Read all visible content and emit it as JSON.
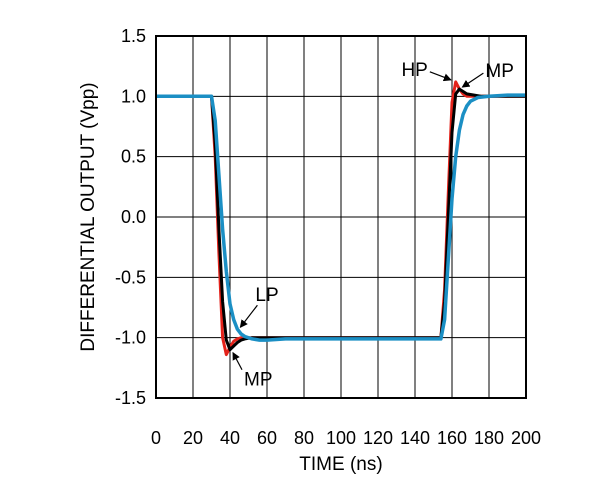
{
  "chart_data": {
    "type": "line",
    "xlabel": "TIME (ns)",
    "ylabel": "DIFFERENTIAL OUTPUT (Vpp)",
    "xlim": [
      0,
      200
    ],
    "ylim": [
      -1.5,
      1.5
    ],
    "x_ticks": [
      0,
      20,
      40,
      60,
      80,
      100,
      120,
      140,
      160,
      180,
      200
    ],
    "y_ticks": [
      1.5,
      1.0,
      0.5,
      0.0,
      -0.5,
      -1.0,
      -1.5
    ],
    "x_tick_labels": [
      "0",
      "20",
      "40",
      "60",
      "80",
      "100",
      "120",
      "140",
      "160",
      "180",
      "200"
    ],
    "y_tick_labels": [
      "1.5",
      "1.0",
      "0.5",
      "0.0",
      "-0.5",
      "-1.0",
      "-1.5"
    ],
    "grid": true,
    "series": [
      {
        "name": "HP",
        "color": "#e3231b",
        "x": [
          0,
          30,
          32,
          34,
          36,
          38,
          40,
          42,
          44,
          46,
          50,
          60,
          80,
          100,
          120,
          140,
          154,
          156,
          158,
          160,
          162,
          164,
          166,
          168,
          172,
          180,
          200
        ],
        "y": [
          1.0,
          1.0,
          0.5,
          -0.3,
          -1.0,
          -1.14,
          -1.08,
          -1.03,
          -1.01,
          -1.0,
          -1.0,
          -1.0,
          -1.0,
          -1.0,
          -1.0,
          -1.0,
          -1.0,
          -0.6,
          0.2,
          0.95,
          1.12,
          1.06,
          1.02,
          1.0,
          1.0,
          1.0,
          1.0
        ]
      },
      {
        "name": "MP",
        "color": "#000000",
        "x": [
          0,
          30,
          32,
          34,
          36,
          38,
          40,
          42,
          44,
          46,
          48,
          52,
          60,
          80,
          100,
          120,
          140,
          154,
          156,
          158,
          160,
          162,
          164,
          166,
          168,
          172,
          176,
          180,
          200
        ],
        "y": [
          1.0,
          1.0,
          0.6,
          -0.1,
          -0.7,
          -1.02,
          -1.1,
          -1.07,
          -1.04,
          -1.02,
          -1.01,
          -1.0,
          -1.0,
          -1.0,
          -1.0,
          -1.0,
          -1.0,
          -1.0,
          -0.7,
          0.0,
          0.7,
          1.02,
          1.06,
          1.04,
          1.02,
          1.01,
          1.0,
          1.0,
          1.0
        ]
      },
      {
        "name": "LP",
        "color": "#1b8fc4",
        "x": [
          0,
          30,
          32,
          34,
          36,
          38,
          40,
          42,
          44,
          46,
          48,
          52,
          56,
          60,
          70,
          80,
          100,
          120,
          140,
          154,
          156,
          158,
          160,
          162,
          164,
          166,
          168,
          170,
          174,
          180,
          190,
          200
        ],
        "y": [
          1.0,
          1.0,
          0.8,
          0.35,
          -0.1,
          -0.45,
          -0.72,
          -0.85,
          -0.93,
          -0.97,
          -0.99,
          -1.01,
          -1.02,
          -1.02,
          -1.01,
          -1.01,
          -1.01,
          -1.01,
          -1.01,
          -1.01,
          -0.85,
          -0.35,
          0.15,
          0.5,
          0.72,
          0.85,
          0.92,
          0.96,
          0.99,
          1.0,
          1.01,
          1.01
        ]
      }
    ],
    "annotations": [
      {
        "text": "HP",
        "x": 161,
        "y": 1.12,
        "label_side": "left"
      },
      {
        "text": "MP",
        "x": 164,
        "y": 1.06,
        "label_side": "right"
      },
      {
        "text": "LP",
        "x": 44,
        "y": -0.93,
        "label_side": "right"
      },
      {
        "text": "MP",
        "x": 40,
        "y": -1.1,
        "label_side": "below-right"
      }
    ]
  }
}
